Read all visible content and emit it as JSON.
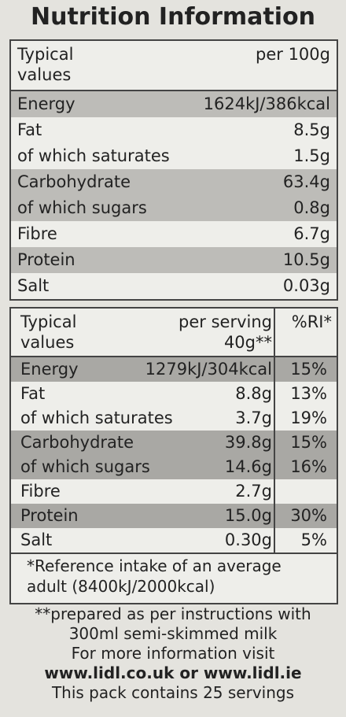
{
  "title": "Nutrition Information",
  "table1": {
    "header": [
      "Typical values",
      "per 100g"
    ],
    "rows": [
      [
        "Energy",
        "1624kJ/386kcal"
      ],
      [
        "Fat",
        "8.5g"
      ],
      [
        "of which saturates",
        "1.5g"
      ],
      [
        "Carbohydrate",
        "63.4g"
      ],
      [
        "of which sugars",
        "0.8g"
      ],
      [
        "Fibre",
        "6.7g"
      ],
      [
        "Protein",
        "10.5g"
      ],
      [
        "Salt",
        "0.03g"
      ]
    ]
  },
  "table2": {
    "header": [
      "Typical values",
      "per serving 40g**",
      "%RI*"
    ],
    "rows": [
      [
        "Energy",
        "1279kJ/304kcal",
        "15%"
      ],
      [
        "Fat",
        "8.8g",
        "13%"
      ],
      [
        "of which saturates",
        "3.7g",
        "19%"
      ],
      [
        "Carbohydrate",
        "39.8g",
        "15%"
      ],
      [
        "of which sugars",
        "14.6g",
        "16%"
      ],
      [
        "Fibre",
        "2.7g"
      ],
      [
        "Protein",
        "15.0g",
        "30%"
      ],
      [
        "Salt",
        "0.30g",
        "5%"
      ]
    ],
    "footnote": "*Reference intake of an average adult (8400kJ/2000kcal)"
  },
  "notes": [
    "**prepared as per instructions with 300ml semi-skimmed milk",
    "For more information visit",
    "www.lidl.co.uk or www.lidl.ie",
    "This pack contains 25 servings"
  ]
}
